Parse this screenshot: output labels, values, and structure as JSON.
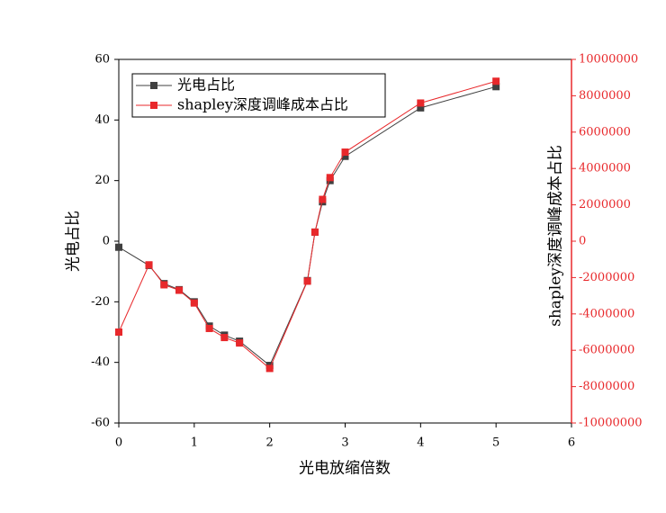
{
  "chart_data": {
    "type": "line",
    "xlabel": "光电放缩倍数",
    "ylabel": "光电占比",
    "y2label": "shapley深度调峰成本占比",
    "x": [
      0,
      0.4,
      0.6,
      0.8,
      1.0,
      1.2,
      1.4,
      1.6,
      2.0,
      2.5,
      2.6,
      2.7,
      2.8,
      3.0,
      4,
      5
    ],
    "series": [
      {
        "name": "光电占比",
        "color": "#404040",
        "axis": "y",
        "values": [
          -2,
          -8,
          -14,
          -16,
          -20,
          -28,
          -31,
          -33,
          -41,
          -13,
          3,
          13,
          20,
          28,
          44,
          51
        ]
      },
      {
        "name": "shapley深度调峰成本占比",
        "color": "#e8282b",
        "axis": "y2",
        "values": [
          -5000000,
          -1300000,
          -2400000,
          -2700000,
          -3400000,
          -4800000,
          -5300000,
          -5600000,
          -7000000,
          -2200000,
          500000,
          2300000,
          3500000,
          4900000,
          7600000,
          8800000
        ]
      }
    ],
    "xlim": [
      0,
      6
    ],
    "xticks": [
      0,
      1,
      2,
      3,
      4,
      5,
      6
    ],
    "ylim": [
      -60,
      60
    ],
    "yticks": [
      -60,
      -40,
      -20,
      0,
      20,
      40,
      60
    ],
    "y2lim": [
      -10000000,
      10000000
    ],
    "y2ticks": [
      -10000000,
      -8000000,
      -6000000,
      -4000000,
      -2000000,
      0,
      2000000,
      4000000,
      6000000,
      8000000,
      10000000
    ],
    "legend": "upper left",
    "y2color": "#e8282b"
  }
}
